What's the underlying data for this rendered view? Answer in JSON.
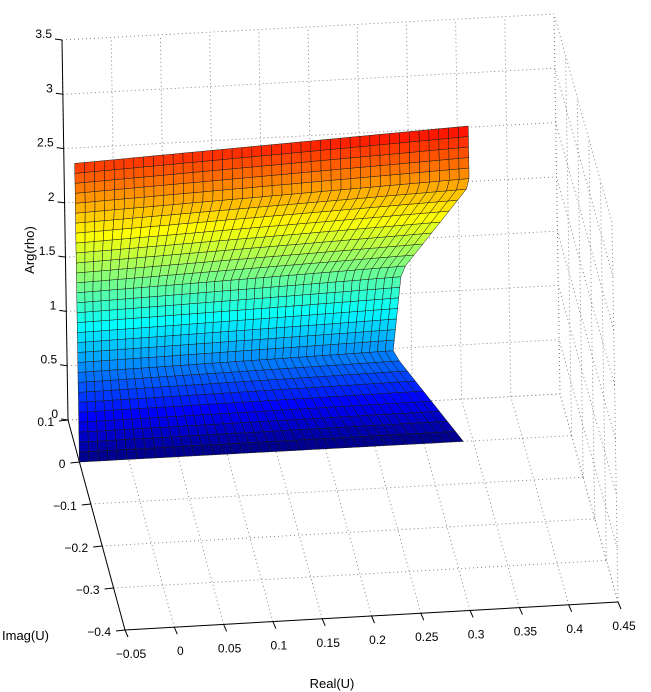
{
  "chart_data": {
    "type": "surface",
    "title": "",
    "xlabel": "Real(U)",
    "ylabel": "Imag(U)",
    "zlabel": "Arg(rho)",
    "x_ticks": [
      "−0.05",
      "0",
      "0.05",
      "0.1",
      "0.15",
      "0.2",
      "0.25",
      "0.3",
      "0.35",
      "0.4",
      "0.45"
    ],
    "y_ticks": [
      "−0.4",
      "−0.3",
      "−0.2",
      "−0.1",
      "0",
      "0.1"
    ],
    "z_ticks": [
      "0",
      "0.5",
      "1",
      "1.5",
      "2",
      "2.5",
      "3",
      "3.5"
    ],
    "xlim": [
      -0.05,
      0.45
    ],
    "ylim": [
      -0.4,
      0.1
    ],
    "zlim": [
      0,
      3.5
    ],
    "grid": true,
    "colormap": "jet",
    "surface": {
      "description_points": [
        {
          "real": -0.05,
          "imag": 0.0,
          "arg": 0.0
        },
        {
          "real": 0.34,
          "imag": 0.0,
          "arg": 0.0
        },
        {
          "real": 0.27,
          "imag": 0.0,
          "arg": 0.85
        },
        {
          "real": 0.28,
          "imag": 0.0,
          "arg": 1.6
        },
        {
          "real": 0.35,
          "imag": 0.0,
          "arg": 2.35
        },
        {
          "real": 0.35,
          "imag": 0.0,
          "arg": 2.9
        },
        {
          "real": -0.05,
          "imag": 0.0,
          "arg": 2.75
        }
      ],
      "arg_range": [
        0,
        2.9
      ]
    }
  }
}
